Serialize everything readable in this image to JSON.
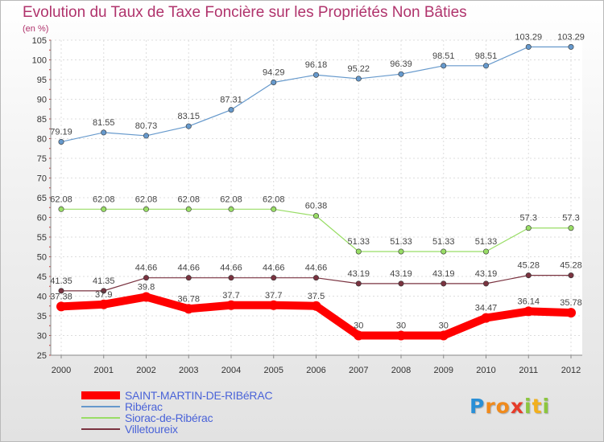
{
  "chart_data": {
    "type": "line",
    "title": "Evolution du Taux de Taxe Foncière sur les Propriétés Non Bâties",
    "unit_label": "(en %)",
    "x": [
      "2000",
      "2001",
      "2002",
      "2003",
      "2004",
      "2005",
      "2006",
      "2007",
      "2008",
      "2009",
      "2010",
      "2011",
      "2012"
    ],
    "ylim": [
      25,
      105
    ],
    "yticks": [
      25,
      30,
      35,
      40,
      45,
      50,
      55,
      60,
      65,
      70,
      75,
      80,
      85,
      90,
      95,
      100,
      105
    ],
    "grid": true,
    "legend_position": "bottom-left",
    "series": [
      {
        "name": "SAINT-MARTIN-DE-RIBéRAC",
        "color": "#ff0000",
        "values": [
          37.38,
          37.9,
          39.8,
          36.78,
          37.7,
          37.7,
          37.5,
          30,
          30,
          30,
          34.47,
          36.14,
          35.78
        ],
        "labels": [
          "37.38",
          "37.9",
          "39.8",
          "36.78",
          "37.7",
          "37.7",
          "37.5",
          "30",
          "30",
          "30",
          "34.47",
          "36.14",
          "35.78"
        ]
      },
      {
        "name": "Ribérac",
        "color": "#6699cc",
        "values": [
          79.19,
          81.55,
          80.73,
          83.15,
          87.31,
          94.29,
          96.18,
          95.22,
          96.39,
          98.51,
          98.51,
          103.29,
          103.29
        ],
        "labels": [
          "79.19",
          "81.55",
          "80.73",
          "83.15",
          "87.31",
          "94.29",
          "96.18",
          "95.22",
          "96.39",
          "98.51",
          "98.51",
          "103.29",
          "103.29"
        ]
      },
      {
        "name": "Siorac-de-Ribérac",
        "color": "#99dd66",
        "values": [
          62.08,
          62.08,
          62.08,
          62.08,
          62.08,
          62.08,
          60.38,
          51.33,
          51.33,
          51.33,
          51.33,
          57.3,
          57.3
        ],
        "labels": [
          "62.08",
          "62.08",
          "62.08",
          "62.08",
          "62.08",
          "62.08",
          "60.38",
          "51.33",
          "51.33",
          "51.33",
          "51.33",
          "57.3",
          "57.3"
        ]
      },
      {
        "name": "Villetoureix",
        "color": "#7a3340",
        "values": [
          41.35,
          41.35,
          44.66,
          44.66,
          44.66,
          44.66,
          44.66,
          43.19,
          43.19,
          43.19,
          43.19,
          45.28,
          45.28
        ],
        "labels": [
          "41.35",
          "41.35",
          "44.66",
          "44.66",
          "44.66",
          "44.66",
          "44.66",
          "43.19",
          "43.19",
          "43.19",
          "43.19",
          "45.28",
          "45.28"
        ]
      }
    ]
  },
  "logo": {
    "letters": [
      "P",
      "r",
      "o",
      "x",
      "i",
      "t",
      "i"
    ],
    "colors": [
      "#2a8fd6",
      "#f08a1c",
      "#f08a1c",
      "#e63c2a",
      "#8cc63f",
      "#f2b01e",
      "#8cc63f"
    ]
  }
}
